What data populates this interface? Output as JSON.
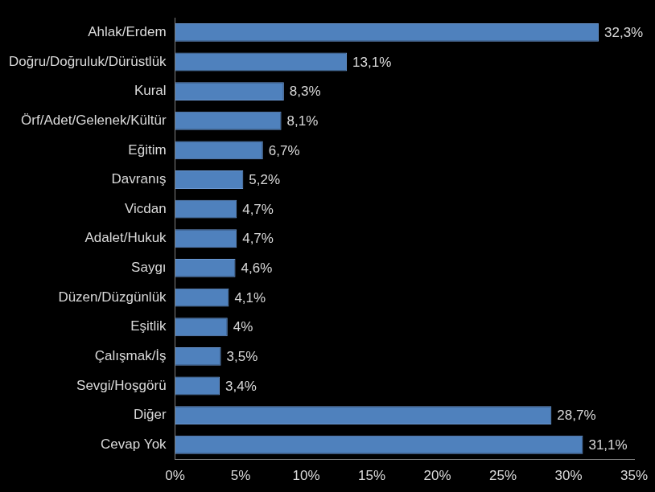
{
  "chart_data": {
    "type": "bar",
    "orientation": "horizontal",
    "categories": [
      "Ahlak/Erdem",
      "Doğru/Doğruluk/Dürüstlük",
      "Kural",
      "Örf/Adet/Gelenek/Kültür",
      "Eğitim",
      "Davranış",
      "Vicdan",
      "Adalet/Hukuk",
      "Saygı",
      "Düzen/Düzgünlük",
      "Eşitlik",
      "Çalışmak/İş",
      "Sevgi/Hoşgörü",
      "Diğer",
      "Cevap Yok"
    ],
    "values": [
      32.3,
      13.1,
      8.3,
      8.1,
      6.7,
      5.2,
      4.7,
      4.7,
      4.6,
      4.1,
      4,
      3.5,
      3.4,
      28.7,
      31.1
    ],
    "value_labels": [
      "32,3%",
      "13,1%",
      "8,3%",
      "8,1%",
      "6,7%",
      "5,2%",
      "4,7%",
      "4,7%",
      "4,6%",
      "4,1%",
      "4%",
      "3,5%",
      "3,4%",
      "28,7%",
      "31,1%"
    ],
    "data_labels": true,
    "color": "#4f81bd",
    "xlim": [
      0,
      35
    ],
    "xticks": [
      {
        "value": 0,
        "label": "0%"
      },
      {
        "value": 5,
        "label": "5%"
      },
      {
        "value": 10,
        "label": "10%"
      },
      {
        "value": 15,
        "label": "15%"
      },
      {
        "value": 20,
        "label": "20%"
      },
      {
        "value": 25,
        "label": "25%"
      },
      {
        "value": 30,
        "label": "30%"
      },
      {
        "value": 35,
        "label": "35%"
      }
    ],
    "grid": false
  }
}
